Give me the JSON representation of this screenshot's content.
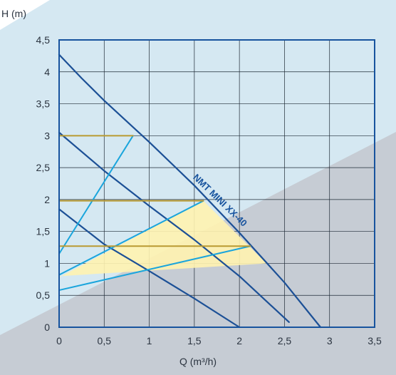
{
  "chart_data": {
    "type": "line",
    "title": "",
    "xlabel": "Q (m³/h)",
    "ylabel": "H (m)",
    "xlim": [
      0,
      3.5
    ],
    "ylim": [
      0,
      4.5
    ],
    "grid": true,
    "x_ticks": [
      "0",
      "0,5",
      "1",
      "1,5",
      "2",
      "2,5",
      "3",
      "3,5"
    ],
    "y_ticks": [
      "0",
      "0,5",
      "1",
      "1,5",
      "2",
      "2,5",
      "3",
      "3,5",
      "4",
      "4,5"
    ],
    "annotation": "NMT MINI XX-40",
    "series": [
      {
        "kind": "pump-curve",
        "x": [
          0,
          0.25,
          0.5,
          1.0,
          1.5,
          2.0,
          2.5,
          2.9
        ],
        "y": [
          4.27,
          3.9,
          3.55,
          2.9,
          2.22,
          1.48,
          0.7,
          0.0
        ]
      },
      {
        "kind": "pump-curve",
        "x": [
          0,
          0.5,
          1.0,
          1.5,
          2.0,
          2.55
        ],
        "y": [
          3.05,
          2.45,
          1.9,
          1.37,
          0.8,
          0.08
        ]
      },
      {
        "kind": "pump-curve",
        "x": [
          0,
          0.5,
          1.0,
          1.5,
          2.0
        ],
        "y": [
          1.85,
          1.3,
          0.88,
          0.45,
          0.0
        ]
      },
      {
        "kind": "proportional-pressure",
        "x": [
          0,
          0.82
        ],
        "y": [
          1.15,
          3.0
        ]
      },
      {
        "kind": "proportional-pressure",
        "x": [
          0,
          1.6
        ],
        "y": [
          0.82,
          1.98
        ]
      },
      {
        "kind": "proportional-pressure",
        "x": [
          0,
          2.12
        ],
        "y": [
          0.58,
          1.27
        ]
      },
      {
        "kind": "constant-pressure",
        "x": [
          0,
          0.82
        ],
        "y": [
          3.0,
          3.0
        ]
      },
      {
        "kind": "constant-pressure",
        "x": [
          0,
          1.6
        ],
        "y": [
          1.98,
          1.98
        ]
      },
      {
        "kind": "constant-pressure",
        "x": [
          0,
          2.12
        ],
        "y": [
          1.27,
          1.27
        ]
      }
    ],
    "operating_area": {
      "x": [
        0,
        1.6,
        2.3,
        0
      ],
      "y": [
        0.78,
        1.98,
        1.0,
        0.8
      ]
    },
    "colors": {
      "background": "#d5e8f2",
      "lower_band": "#c6ccd4",
      "plot_frame": "#17539e",
      "pump_curve": "#1c5096",
      "proportional": "#1aa5dc",
      "constant": "#b99a32",
      "operating_area": "#fff3b0"
    }
  }
}
